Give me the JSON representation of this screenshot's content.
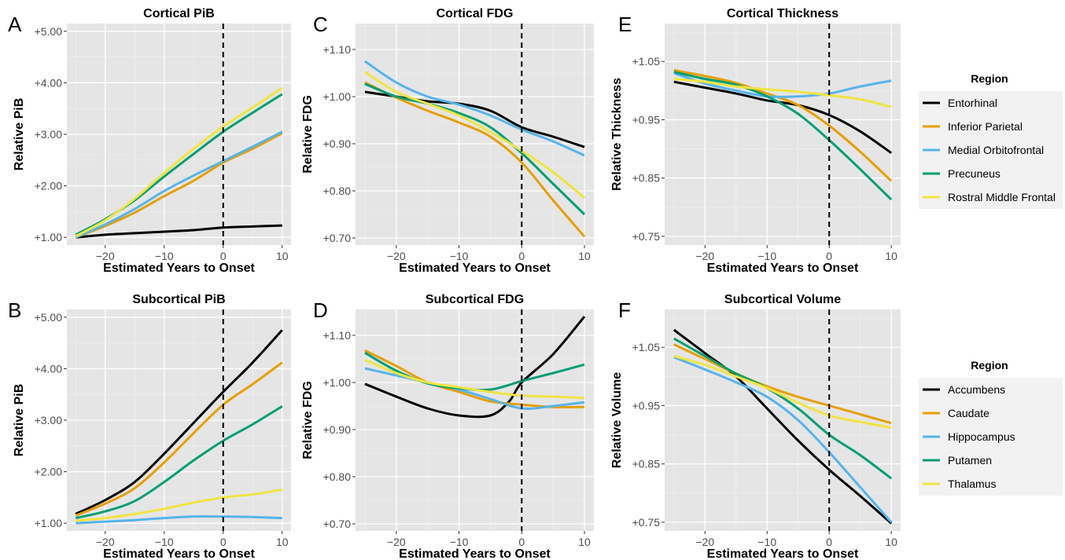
{
  "figure": {
    "legends": [
      {
        "id": "cortical",
        "title": "Region",
        "items": [
          {
            "name": "Entorhinal",
            "color": "#000000"
          },
          {
            "name": "Inferior Parietal",
            "color": "#E69F00"
          },
          {
            "name": "Medial Orbitofrontal",
            "color": "#56B4E9"
          },
          {
            "name": "Precuneus",
            "color": "#009E73"
          },
          {
            "name": "Rostral Middle Frontal",
            "color": "#F0E442"
          }
        ]
      },
      {
        "id": "subcortical",
        "title": "Region",
        "items": [
          {
            "name": "Accumbens",
            "color": "#000000"
          },
          {
            "name": "Caudate",
            "color": "#E69F00"
          },
          {
            "name": "Hippocampus",
            "color": "#56B4E9"
          },
          {
            "name": "Putamen",
            "color": "#009E73"
          },
          {
            "name": "Thalamus",
            "color": "#F0E442"
          }
        ]
      }
    ]
  },
  "chart_data": [
    {
      "panel_label": "A",
      "type": "line",
      "title": "Cortical PiB",
      "xlabel": "Estimated Years to Onset",
      "ylabel": "Relative PiB",
      "xlim": [
        -26.5,
        11.5
      ],
      "ylim": [
        0.85,
        5.15
      ],
      "xticks": [
        -20,
        -10,
        0,
        10
      ],
      "xtick_labels": [
        "−20",
        "−10",
        "0",
        "10"
      ],
      "yticks": [
        1,
        2,
        3,
        4,
        5
      ],
      "ytick_labels": [
        "+1.00",
        "+2.00",
        "+3.00",
        "+4.00",
        "+5.00"
      ],
      "vline_x": 0,
      "grid": true,
      "legend": "cortical",
      "series": [
        {
          "name": "Entorhinal",
          "color": "#000000",
          "x": [
            -25,
            -20,
            -15,
            -10,
            -5,
            0,
            5,
            10
          ],
          "y": [
            1.0,
            1.05,
            1.08,
            1.11,
            1.14,
            1.19,
            1.21,
            1.23
          ]
        },
        {
          "name": "Inferior Parietal",
          "color": "#E69F00",
          "x": [
            -25,
            -20,
            -15,
            -10,
            -5,
            0,
            5,
            10
          ],
          "y": [
            1.0,
            1.22,
            1.48,
            1.8,
            2.1,
            2.45,
            2.72,
            3.02
          ]
        },
        {
          "name": "Medial Orbitofrontal",
          "color": "#56B4E9",
          "x": [
            -25,
            -20,
            -15,
            -10,
            -5,
            0,
            5,
            10
          ],
          "y": [
            1.0,
            1.25,
            1.55,
            1.9,
            2.2,
            2.48,
            2.76,
            3.05
          ]
        },
        {
          "name": "Precuneus",
          "color": "#009E73",
          "x": [
            -25,
            -20,
            -15,
            -10,
            -5,
            0,
            5,
            10
          ],
          "y": [
            1.05,
            1.35,
            1.72,
            2.18,
            2.62,
            3.05,
            3.42,
            3.78
          ]
        },
        {
          "name": "Rostral Middle Frontal",
          "color": "#F0E442",
          "x": [
            -25,
            -20,
            -15,
            -10,
            -5,
            0,
            5,
            10
          ],
          "y": [
            1.02,
            1.33,
            1.75,
            2.25,
            2.72,
            3.15,
            3.52,
            3.9
          ]
        }
      ]
    },
    {
      "panel_label": "C",
      "type": "line",
      "title": "Cortical FDG",
      "xlabel": "Estimated Years to Onset",
      "ylabel": "Relative FDG",
      "xlim": [
        -26.5,
        11.5
      ],
      "ylim": [
        0.685,
        1.155
      ],
      "xticks": [
        -20,
        -10,
        0,
        10
      ],
      "xtick_labels": [
        "−20",
        "−10",
        "0",
        "10"
      ],
      "yticks": [
        0.7,
        0.8,
        0.9,
        1.0,
        1.1
      ],
      "ytick_labels": [
        "+0.70",
        "+0.80",
        "+0.90",
        "+1.00",
        "+1.10"
      ],
      "vline_x": 0,
      "grid": true,
      "legend": "cortical",
      "series": [
        {
          "name": "Entorhinal",
          "color": "#000000",
          "x": [
            -25,
            -20,
            -15,
            -10,
            -5,
            0,
            5,
            10
          ],
          "y": [
            1.01,
            1.0,
            0.99,
            0.985,
            0.97,
            0.935,
            0.915,
            0.893
          ]
        },
        {
          "name": "Inferior Parietal",
          "color": "#E69F00",
          "x": [
            -25,
            -20,
            -15,
            -10,
            -5,
            0,
            5,
            10
          ],
          "y": [
            1.03,
            0.998,
            0.97,
            0.945,
            0.915,
            0.86,
            0.78,
            0.703
          ]
        },
        {
          "name": "Medial Orbitofrontal",
          "color": "#56B4E9",
          "x": [
            -25,
            -20,
            -15,
            -10,
            -5,
            0,
            5,
            10
          ],
          "y": [
            1.075,
            1.03,
            1.0,
            0.983,
            0.96,
            0.93,
            0.905,
            0.875
          ]
        },
        {
          "name": "Precuneus",
          "color": "#009E73",
          "x": [
            -25,
            -20,
            -15,
            -10,
            -5,
            0,
            5,
            10
          ],
          "y": [
            1.027,
            1.0,
            0.985,
            0.965,
            0.935,
            0.88,
            0.815,
            0.75
          ]
        },
        {
          "name": "Rostral Middle Frontal",
          "color": "#F0E442",
          "x": [
            -25,
            -20,
            -15,
            -10,
            -5,
            0,
            5,
            10
          ],
          "y": [
            1.052,
            1.01,
            0.985,
            0.96,
            0.925,
            0.885,
            0.84,
            0.785
          ]
        }
      ]
    },
    {
      "panel_label": "E",
      "type": "line",
      "title": "Cortical Thickness",
      "xlabel": "Estimated Years to Onset",
      "ylabel": "Relative Thickness",
      "xlim": [
        -26.5,
        11.5
      ],
      "ylim": [
        0.735,
        1.115
      ],
      "xticks": [
        -20,
        -10,
        0,
        10
      ],
      "xtick_labels": [
        "−20",
        "−10",
        "0",
        "10"
      ],
      "yticks": [
        0.75,
        0.85,
        0.95,
        1.05
      ],
      "ytick_labels": [
        "+0.75",
        "+0.85",
        "+0.95",
        "+1.05"
      ],
      "vline_x": 0,
      "grid": true,
      "legend": "cortical",
      "series": [
        {
          "name": "Entorhinal",
          "color": "#000000",
          "x": [
            -25,
            -20,
            -15,
            -10,
            -5,
            0,
            5,
            10
          ],
          "y": [
            1.015,
            1.005,
            0.995,
            0.983,
            0.975,
            0.958,
            0.93,
            0.893
          ]
        },
        {
          "name": "Inferior Parietal",
          "color": "#E69F00",
          "x": [
            -25,
            -20,
            -15,
            -10,
            -5,
            0,
            5,
            10
          ],
          "y": [
            1.035,
            1.025,
            1.013,
            0.995,
            0.975,
            0.94,
            0.895,
            0.845
          ]
        },
        {
          "name": "Medial Orbitofrontal",
          "color": "#56B4E9",
          "x": [
            -25,
            -20,
            -15,
            -10,
            -5,
            0,
            5,
            10
          ],
          "y": [
            1.03,
            1.012,
            1.0,
            0.99,
            0.99,
            0.995,
            1.007,
            1.017
          ]
        },
        {
          "name": "Precuneus",
          "color": "#009E73",
          "x": [
            -25,
            -20,
            -15,
            -10,
            -5,
            0,
            5,
            10
          ],
          "y": [
            1.032,
            1.02,
            1.01,
            0.99,
            0.96,
            0.915,
            0.865,
            0.813
          ]
        },
        {
          "name": "Rostral Middle Frontal",
          "color": "#F0E442",
          "x": [
            -25,
            -20,
            -15,
            -10,
            -5,
            0,
            5,
            10
          ],
          "y": [
            1.02,
            1.015,
            1.007,
            1.002,
            0.998,
            0.992,
            0.985,
            0.972
          ]
        }
      ]
    },
    {
      "panel_label": "B",
      "type": "line",
      "title": "Subcortical PiB",
      "xlabel": "Estimated Years to Onset",
      "ylabel": "Relative PiB",
      "xlim": [
        -26.5,
        11.5
      ],
      "ylim": [
        0.85,
        5.15
      ],
      "xticks": [
        -20,
        -10,
        0,
        10
      ],
      "xtick_labels": [
        "−20",
        "−10",
        "0",
        "10"
      ],
      "yticks": [
        1,
        2,
        3,
        4,
        5
      ],
      "ytick_labels": [
        "+1.00",
        "+2.00",
        "+3.00",
        "+4.00",
        "+5.00"
      ],
      "vline_x": 0,
      "grid": true,
      "legend": "subcortical",
      "series": [
        {
          "name": "Accumbens",
          "color": "#000000",
          "x": [
            -25,
            -20,
            -15,
            -10,
            -5,
            0,
            5,
            10
          ],
          "y": [
            1.18,
            1.45,
            1.8,
            2.35,
            2.95,
            3.55,
            4.12,
            4.75
          ]
        },
        {
          "name": "Caudate",
          "color": "#E69F00",
          "x": [
            -25,
            -20,
            -15,
            -10,
            -5,
            0,
            5,
            10
          ],
          "y": [
            1.15,
            1.38,
            1.68,
            2.18,
            2.75,
            3.3,
            3.7,
            4.12
          ]
        },
        {
          "name": "Hippocampus",
          "color": "#56B4E9",
          "x": [
            -25,
            -20,
            -15,
            -10,
            -5,
            0,
            5,
            10
          ],
          "y": [
            1.0,
            1.03,
            1.06,
            1.1,
            1.13,
            1.13,
            1.12,
            1.1
          ]
        },
        {
          "name": "Putamen",
          "color": "#009E73",
          "x": [
            -25,
            -20,
            -15,
            -10,
            -5,
            0,
            5,
            10
          ],
          "y": [
            1.1,
            1.23,
            1.43,
            1.8,
            2.22,
            2.6,
            2.92,
            3.27
          ]
        },
        {
          "name": "Thalamus",
          "color": "#F0E442",
          "x": [
            -25,
            -20,
            -15,
            -10,
            -5,
            0,
            5,
            10
          ],
          "y": [
            1.05,
            1.1,
            1.18,
            1.28,
            1.4,
            1.5,
            1.56,
            1.65
          ]
        }
      ]
    },
    {
      "panel_label": "D",
      "type": "line",
      "title": "Subcortical FDG",
      "xlabel": "Estimated Years to Onset",
      "ylabel": "Relative FDG",
      "xlim": [
        -26.5,
        11.5
      ],
      "ylim": [
        0.685,
        1.155
      ],
      "xticks": [
        -20,
        -10,
        0,
        10
      ],
      "xtick_labels": [
        "−20",
        "−10",
        "0",
        "10"
      ],
      "yticks": [
        0.7,
        0.8,
        0.9,
        1.0,
        1.1
      ],
      "ytick_labels": [
        "+0.70",
        "+0.80",
        "+0.90",
        "+1.00",
        "+1.10"
      ],
      "vline_x": 0,
      "grid": true,
      "legend": "subcortical",
      "series": [
        {
          "name": "Accumbens",
          "color": "#000000",
          "x": [
            -25,
            -20,
            -15,
            -10,
            -5,
            -2,
            0,
            5,
            10
          ],
          "y": [
            0.997,
            0.97,
            0.945,
            0.93,
            0.93,
            0.96,
            1.0,
            1.06,
            1.14
          ]
        },
        {
          "name": "Caudate",
          "color": "#E69F00",
          "x": [
            -25,
            -20,
            -15,
            -10,
            -5,
            0,
            5,
            10
          ],
          "y": [
            1.068,
            1.035,
            1.0,
            0.98,
            0.96,
            0.953,
            0.948,
            0.948
          ]
        },
        {
          "name": "Hippocampus",
          "color": "#56B4E9",
          "x": [
            -25,
            -20,
            -15,
            -10,
            -5,
            0,
            5,
            10
          ],
          "y": [
            1.03,
            1.015,
            1.0,
            0.985,
            0.965,
            0.945,
            0.95,
            0.958
          ]
        },
        {
          "name": "Putamen",
          "color": "#009E73",
          "x": [
            -25,
            -20,
            -15,
            -10,
            -5,
            0,
            5,
            10
          ],
          "y": [
            1.063,
            1.025,
            0.998,
            0.988,
            0.985,
            1.003,
            1.02,
            1.038
          ]
        },
        {
          "name": "Thalamus",
          "color": "#F0E442",
          "x": [
            -25,
            -20,
            -15,
            -10,
            -5,
            0,
            5,
            10
          ],
          "y": [
            1.048,
            1.02,
            1.0,
            0.99,
            0.98,
            0.972,
            0.97,
            0.967
          ]
        }
      ]
    },
    {
      "panel_label": "F",
      "type": "line",
      "title": "Subcortical Volume",
      "xlabel": "Estimated Years to Onset",
      "ylabel": "Relative Volume",
      "xlim": [
        -26.5,
        11.5
      ],
      "ylim": [
        0.735,
        1.115
      ],
      "xticks": [
        -20,
        -10,
        0,
        10
      ],
      "xtick_labels": [
        "−20",
        "−10",
        "0",
        "10"
      ],
      "yticks": [
        0.75,
        0.85,
        0.95,
        1.05
      ],
      "ytick_labels": [
        "+0.75",
        "+0.85",
        "+0.95",
        "+1.05"
      ],
      "vline_x": 0,
      "grid": true,
      "legend": "subcortical",
      "series": [
        {
          "name": "Accumbens",
          "color": "#000000",
          "x": [
            -25,
            -20,
            -15,
            -10,
            -5,
            0,
            5,
            10
          ],
          "y": [
            1.08,
            1.04,
            1.0,
            0.945,
            0.89,
            0.84,
            0.795,
            0.748
          ]
        },
        {
          "name": "Caudate",
          "color": "#E69F00",
          "x": [
            -25,
            -20,
            -15,
            -10,
            -5,
            0,
            5,
            10
          ],
          "y": [
            1.055,
            1.03,
            1.005,
            0.983,
            0.965,
            0.95,
            0.935,
            0.92
          ]
        },
        {
          "name": "Hippocampus",
          "color": "#56B4E9",
          "x": [
            -25,
            -20,
            -15,
            -10,
            -5,
            0,
            5,
            10
          ],
          "y": [
            1.033,
            1.012,
            0.99,
            0.965,
            0.925,
            0.87,
            0.81,
            0.75
          ]
        },
        {
          "name": "Putamen",
          "color": "#009E73",
          "x": [
            -25,
            -20,
            -15,
            -10,
            -5,
            0,
            5,
            10
          ],
          "y": [
            1.065,
            1.035,
            1.005,
            0.98,
            0.945,
            0.9,
            0.865,
            0.825
          ]
        },
        {
          "name": "Thalamus",
          "color": "#F0E442",
          "x": [
            -25,
            -20,
            -15,
            -10,
            -5,
            0,
            5,
            10
          ],
          "y": [
            1.035,
            1.02,
            1.0,
            0.98,
            0.955,
            0.933,
            0.922,
            0.912
          ]
        }
      ]
    }
  ]
}
